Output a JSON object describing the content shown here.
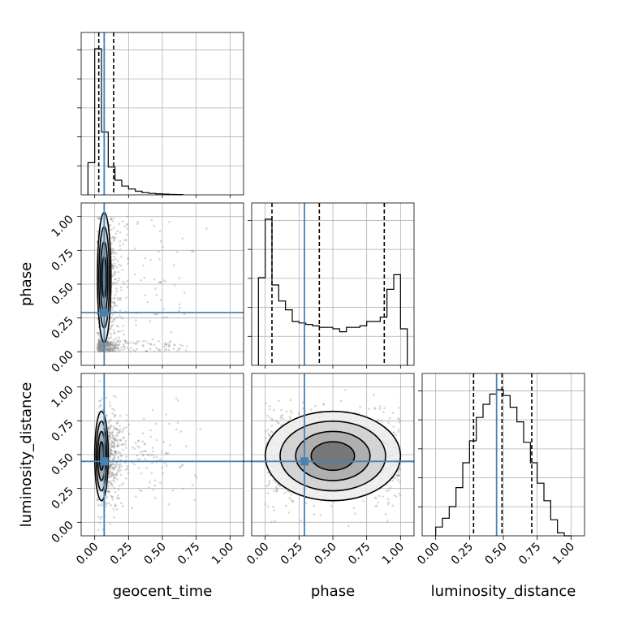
{
  "chart_data": {
    "type": "corner",
    "parameters": [
      "geocent_time",
      "phase",
      "luminosity_distance"
    ],
    "axis_labels": {
      "x": [
        "geocent_time",
        "phase",
        "luminosity_distance"
      ],
      "y": [
        "phase",
        "luminosity_distance"
      ]
    },
    "ticks": [
      0.0,
      0.25,
      0.5,
      0.75,
      1.0
    ],
    "tick_labels": [
      "0.00",
      "0.25",
      "0.50",
      "0.75",
      "1.00"
    ],
    "ranges": [
      [
        -0.1,
        1.1
      ],
      [
        -0.1,
        1.1
      ],
      [
        -0.1,
        1.1
      ]
    ],
    "grid": true,
    "truths": [
      0.07,
      0.29,
      0.45
    ],
    "truth_color": "#4682b4",
    "quantiles": [
      [
        0.03,
        0.07,
        0.14
      ],
      [
        0.05,
        0.4,
        0.88
      ],
      [
        0.28,
        0.49,
        0.71
      ]
    ],
    "histograms": [
      {
        "parameter": "geocent_time",
        "bin_edges": [
          -0.05,
          0.0,
          0.05,
          0.1,
          0.15,
          0.2,
          0.25,
          0.3,
          0.35,
          0.4,
          0.45,
          0.5,
          0.55,
          0.6,
          0.65
        ],
        "counts": [
          0.22,
          1.0,
          0.43,
          0.19,
          0.1,
          0.06,
          0.04,
          0.025,
          0.015,
          0.01,
          0.007,
          0.005,
          0.003,
          0.002
        ]
      },
      {
        "parameter": "phase",
        "bin_edges": [
          -0.05,
          0.0,
          0.05,
          0.1,
          0.15,
          0.2,
          0.25,
          0.3,
          0.35,
          0.4,
          0.45,
          0.5,
          0.55,
          0.6,
          0.65,
          0.7,
          0.75,
          0.8,
          0.85,
          0.9,
          0.95,
          1.0,
          1.05
        ],
        "counts": [
          0.6,
          1.0,
          0.55,
          0.44,
          0.38,
          0.3,
          0.29,
          0.28,
          0.27,
          0.26,
          0.26,
          0.25,
          0.23,
          0.26,
          0.26,
          0.27,
          0.3,
          0.3,
          0.33,
          0.52,
          0.62,
          0.25
        ]
      },
      {
        "parameter": "luminosity_distance",
        "bin_edges": [
          0.0,
          0.05,
          0.1,
          0.15,
          0.2,
          0.25,
          0.3,
          0.35,
          0.4,
          0.45,
          0.5,
          0.55,
          0.6,
          0.65,
          0.7,
          0.75,
          0.8,
          0.85,
          0.9,
          0.95,
          1.0
        ],
        "counts": [
          0.06,
          0.12,
          0.2,
          0.33,
          0.5,
          0.65,
          0.81,
          0.9,
          0.97,
          1.0,
          0.96,
          0.88,
          0.78,
          0.64,
          0.5,
          0.36,
          0.24,
          0.11,
          0.02,
          0.0
        ]
      }
    ],
    "panels_2d": [
      {
        "x": "geocent_time",
        "y": "phase",
        "center": [
          0.07,
          0.55
        ],
        "spread": [
          0.05,
          0.48
        ]
      },
      {
        "x": "geocent_time",
        "y": "luminosity_distance",
        "center": [
          0.05,
          0.49
        ],
        "spread": [
          0.05,
          0.33
        ]
      },
      {
        "x": "phase",
        "y": "luminosity_distance",
        "center": [
          0.5,
          0.49
        ],
        "spread": [
          0.5,
          0.33
        ]
      }
    ]
  }
}
